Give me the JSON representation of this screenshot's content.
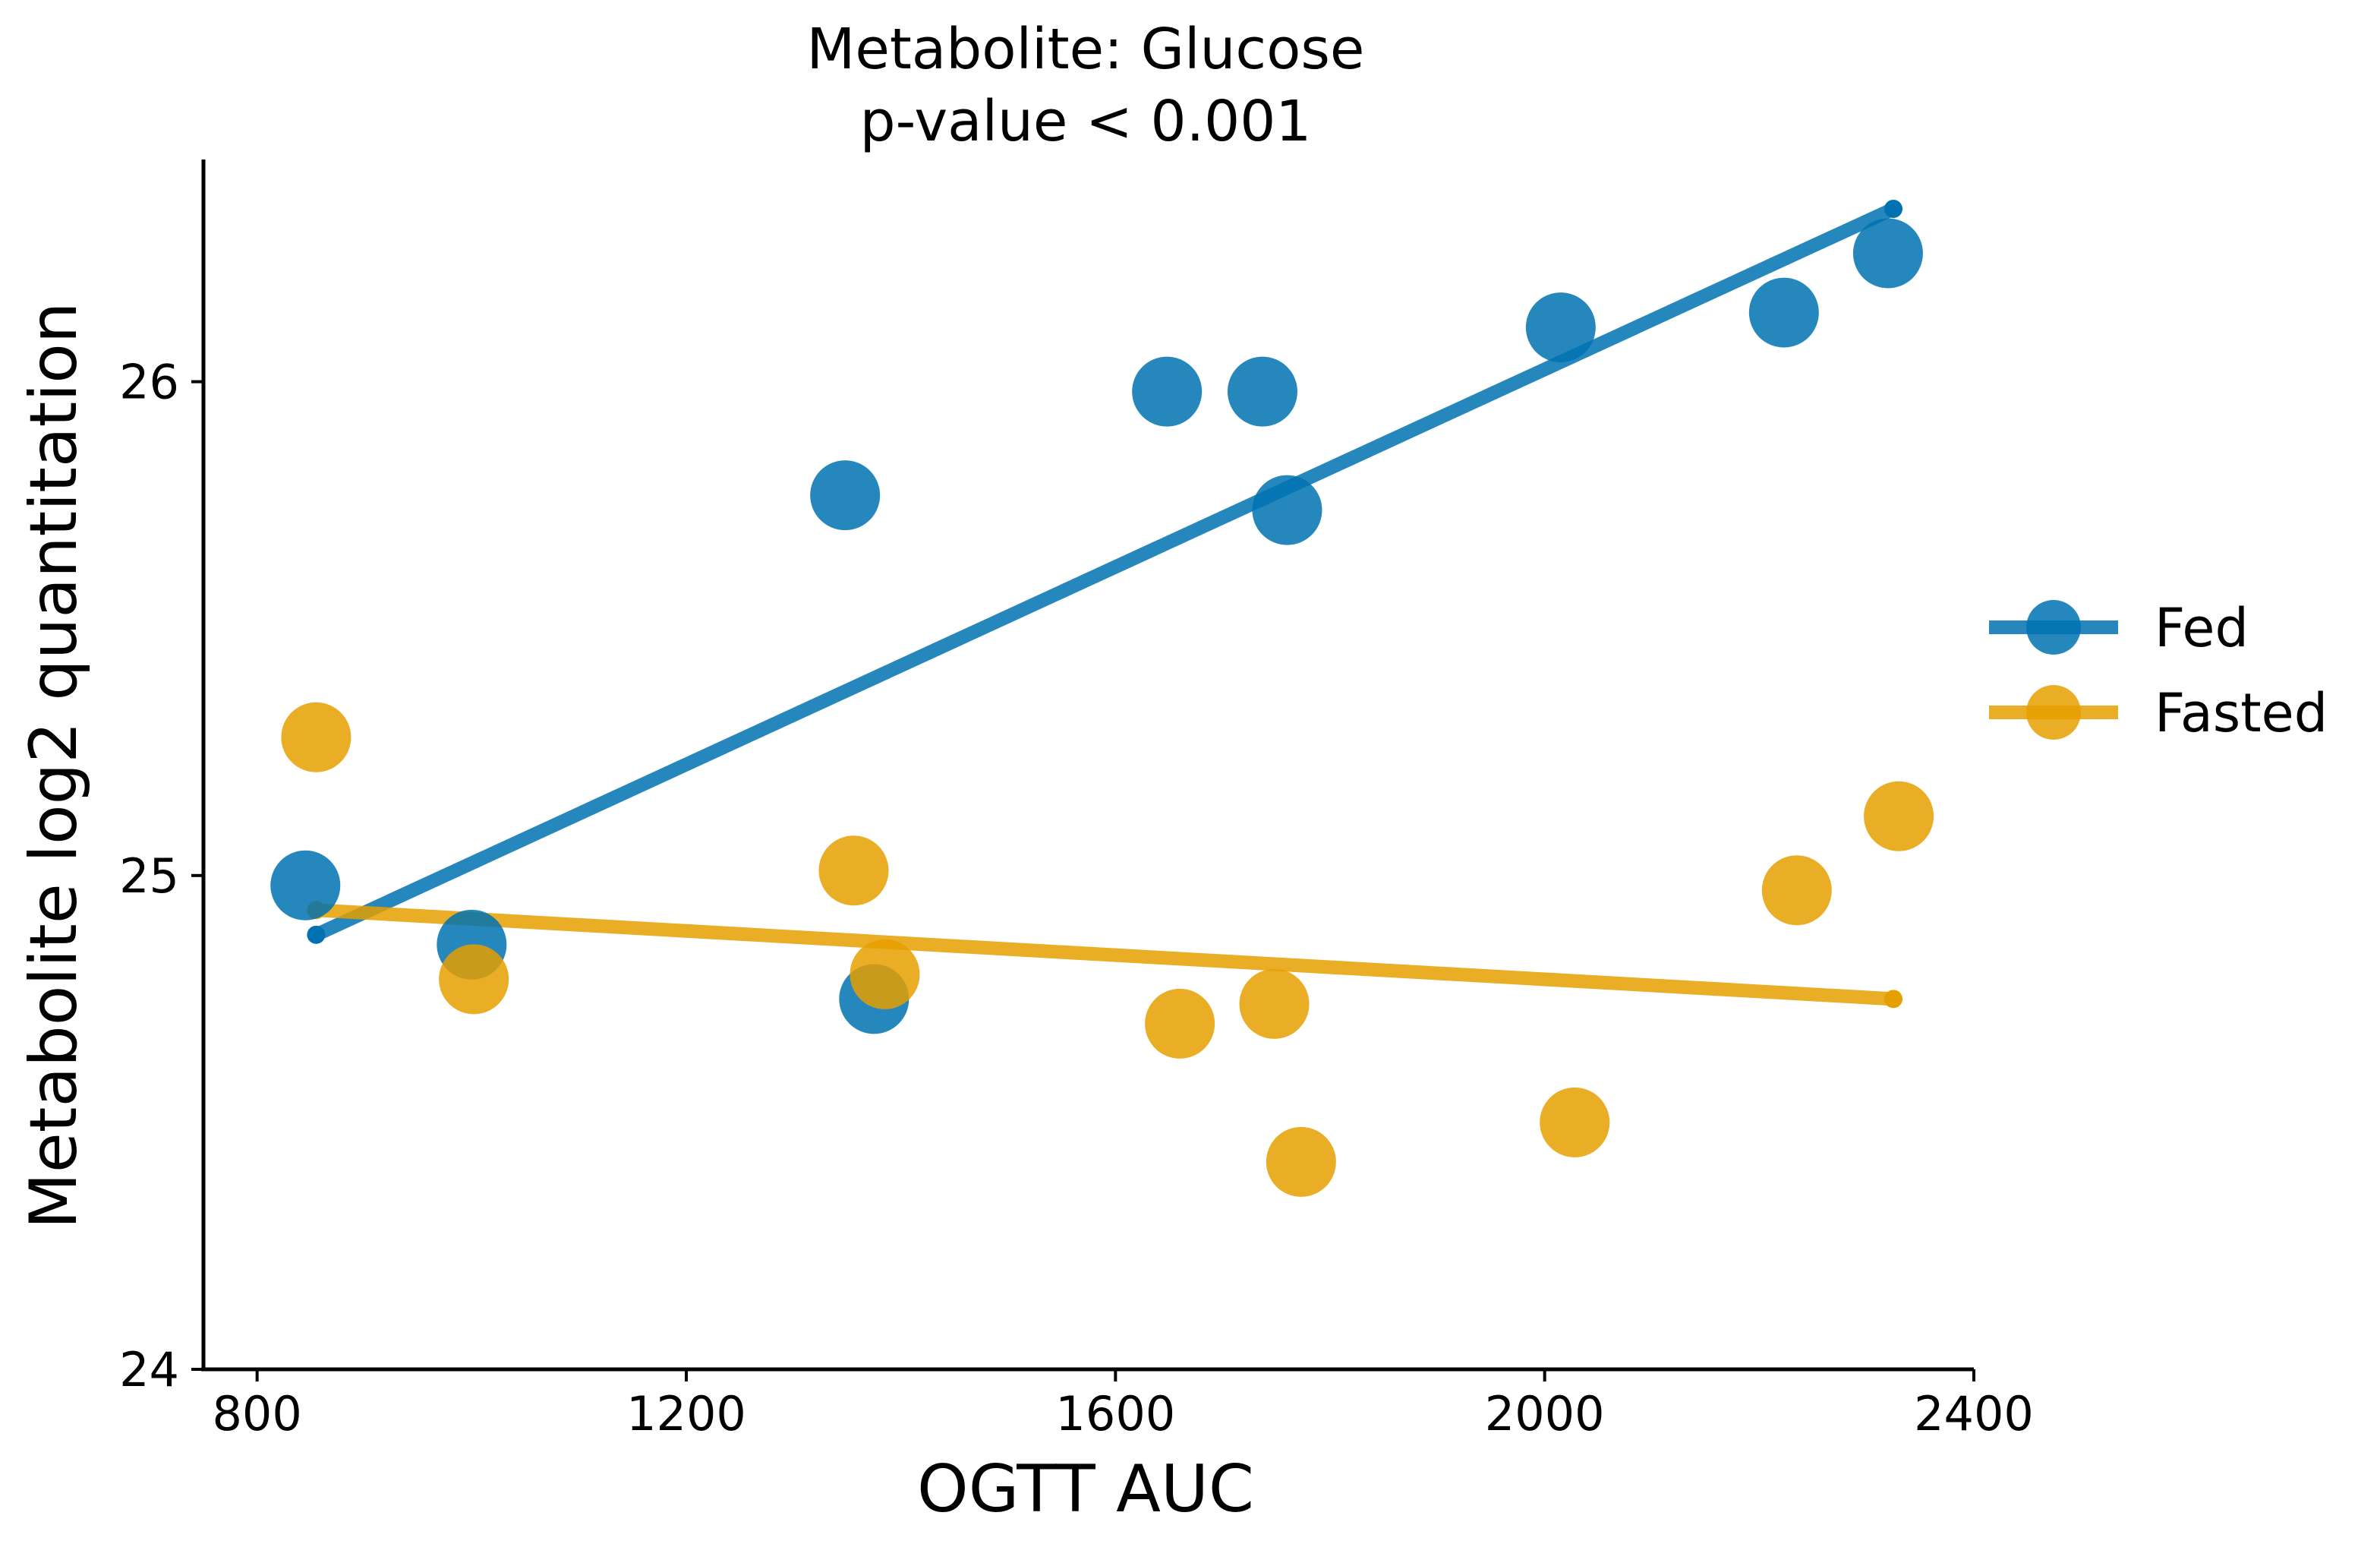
{
  "chart_data": {
    "type": "scatter",
    "title": "Metabolite: Glucose",
    "subtitle": "p-value < 0.001",
    "xlabel": "OGTT AUC",
    "ylabel": "Metabolite log2 quantitation",
    "xlim": [
      750,
      2400
    ],
    "ylim": [
      24,
      26.45
    ],
    "xticks": [
      800,
      1200,
      1600,
      2000,
      2400
    ],
    "yticks": [
      24,
      25,
      26
    ],
    "xtick_labels": [
      "800",
      "1200",
      "1600",
      "2000",
      "2400"
    ],
    "ytick_labels": [
      "24",
      "25",
      "26"
    ],
    "grid": false,
    "legend_position": "right",
    "series": [
      {
        "name": "Fed",
        "color": "#0072B2",
        "points": [
          {
            "x": 845,
            "y": 24.98
          },
          {
            "x": 1000,
            "y": 24.86
          },
          {
            "x": 1348,
            "y": 25.77
          },
          {
            "x": 1375,
            "y": 24.75
          },
          {
            "x": 1648,
            "y": 25.98
          },
          {
            "x": 1737,
            "y": 25.98
          },
          {
            "x": 1760,
            "y": 25.74
          },
          {
            "x": 2015,
            "y": 26.11
          },
          {
            "x": 2223,
            "y": 26.14
          },
          {
            "x": 2320,
            "y": 26.26
          }
        ],
        "fit": {
          "x": [
            855,
            2325
          ],
          "y": [
            24.88,
            26.35
          ]
        }
      },
      {
        "name": "Fasted",
        "color": "#E69F00",
        "points": [
          {
            "x": 855,
            "y": 25.28
          },
          {
            "x": 1002,
            "y": 24.79
          },
          {
            "x": 1356,
            "y": 25.01
          },
          {
            "x": 1385,
            "y": 24.8
          },
          {
            "x": 1660,
            "y": 24.7
          },
          {
            "x": 1748,
            "y": 24.74
          },
          {
            "x": 1773,
            "y": 24.42
          },
          {
            "x": 2028,
            "y": 24.5
          },
          {
            "x": 2235,
            "y": 24.97
          },
          {
            "x": 2330,
            "y": 25.12
          }
        ],
        "fit": {
          "x": [
            855,
            2325
          ],
          "y": [
            24.93,
            24.75
          ]
        }
      }
    ]
  }
}
